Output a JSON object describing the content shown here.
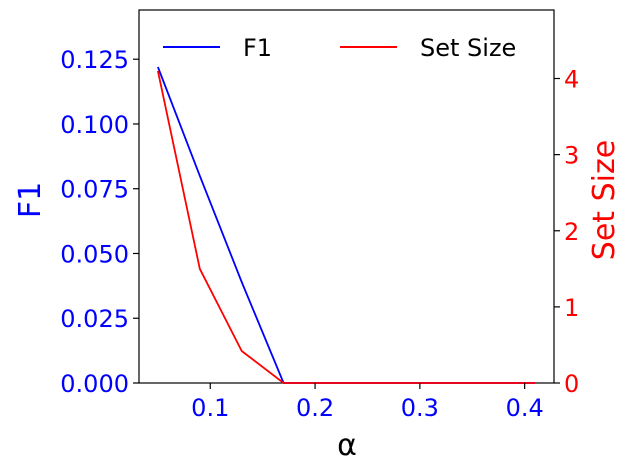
{
  "chart_data": {
    "type": "line",
    "xlabel": "α",
    "ylabel_left": "F1",
    "ylabel_right": "Set Size",
    "x": [
      0.05,
      0.09,
      0.13,
      0.17,
      0.21,
      0.25,
      0.29,
      0.33,
      0.37,
      0.41
    ],
    "xlim": [
      0.032,
      0.428
    ],
    "ylim_left": [
      0.0,
      0.144
    ],
    "ylim_right": [
      0.0,
      4.9
    ],
    "x_ticks": [
      "0.1",
      "0.2",
      "0.3",
      "0.4"
    ],
    "x_tick_values": [
      0.1,
      0.2,
      0.3,
      0.4
    ],
    "y_left_ticks": [
      "0.000",
      "0.025",
      "0.050",
      "0.075",
      "0.100",
      "0.125"
    ],
    "y_left_tick_values": [
      0.0,
      0.025,
      0.05,
      0.075,
      0.1,
      0.125
    ],
    "y_right_ticks": [
      "0",
      "1",
      "2",
      "3",
      "4"
    ],
    "y_right_tick_values": [
      0,
      1,
      2,
      3,
      4
    ],
    "grid": false,
    "legend": {
      "placement": "top",
      "columns": 2
    },
    "series": [
      {
        "name": "F1",
        "axis": "left",
        "color": "#0000ff",
        "values": [
          0.122,
          0.08,
          0.039,
          0.0,
          0.0,
          0.0,
          0.0,
          0.0,
          0.0,
          0.0
        ]
      },
      {
        "name": "Set Size",
        "axis": "right",
        "color": "#ff0000",
        "values": [
          4.1,
          1.5,
          0.42,
          0.0,
          0.0,
          0.0,
          0.0,
          0.0,
          0.0,
          0.0
        ]
      }
    ]
  }
}
